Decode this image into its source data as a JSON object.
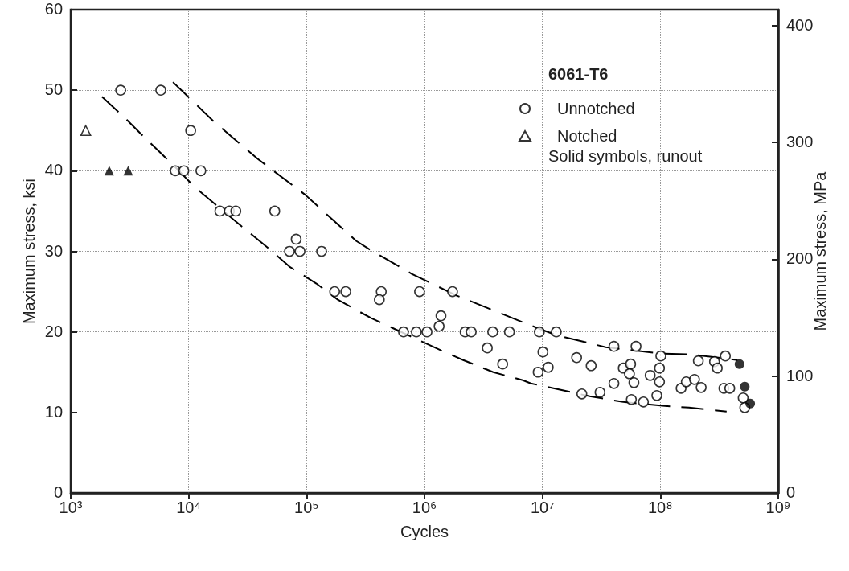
{
  "chart_data": {
    "type": "scatter",
    "xlabel": "Cycles",
    "ylabel": "Maximum stress, ksi",
    "y2label": "Maximum stress, MPa",
    "legend_title": "6061-T6",
    "annotations": [
      "Solid symbols, runout"
    ],
    "log": "x",
    "grid": true,
    "legend": "top right",
    "xlim": [
      1000,
      1000000000
    ],
    "xticks": [
      {
        "value": 1000,
        "label": "10³"
      },
      {
        "value": 10000,
        "label": "10⁴"
      },
      {
        "value": 100000,
        "label": "10⁵"
      },
      {
        "value": 1000000,
        "label": "10⁶"
      },
      {
        "value": 10000000,
        "label": "10⁷"
      },
      {
        "value": 100000000,
        "label": "10⁸"
      },
      {
        "value": 1000000000,
        "label": "10⁹"
      }
    ],
    "ylim": [
      0,
      60
    ],
    "yticks": [
      0,
      10,
      20,
      30,
      40,
      50,
      60
    ],
    "y2lim": [
      0,
      413.7
    ],
    "y2ticks": [
      0,
      100,
      200,
      300,
      400
    ],
    "series": [
      {
        "name": "Unnotched",
        "type": "scatter",
        "marker": "circle",
        "color": "#000000",
        "x": [
          2650,
          5800,
          10400,
          7700,
          9100,
          12700,
          18400,
          22100,
          25100,
          53700,
          81600,
          71600,
          87900,
          134000,
          173000,
          215000,
          430000,
          414000,
          908000,
          1730000,
          1380000,
          1330000,
          664000,
          853000,
          1050000,
          2210000,
          2490000,
          3790000,
          5250000,
          3410000,
          4600000,
          9420000,
          13100000,
          10100000,
          11200000,
          9200000,
          19500000,
          25900000,
          40400000,
          62200000,
          21600000,
          30800000,
          40400000,
          48500000,
          56000000,
          54700000,
          59700000,
          56800000,
          71900000,
          82000000,
          98400000,
          101000000,
          98400000,
          93400000,
          150000000,
          166000000,
          195000000,
          222000000,
          210000000,
          288000000,
          304000000,
          356000000,
          346000000,
          388000000,
          504000000,
          520000000
        ],
        "values": [
          50,
          50,
          45,
          40,
          40,
          40,
          35,
          35,
          35,
          35,
          31.5,
          30,
          30,
          30,
          25,
          25,
          25,
          24,
          25,
          25,
          22,
          20.7,
          20,
          20,
          20,
          20,
          20,
          20,
          20,
          18,
          16,
          20,
          20,
          17.5,
          15.6,
          15,
          16.8,
          15.8,
          18.2,
          18.2,
          12.3,
          12.5,
          13.6,
          15.5,
          16,
          14.8,
          13.7,
          11.6,
          11.3,
          14.6,
          15.5,
          17,
          13.8,
          12.1,
          13,
          13.8,
          14.1,
          13.1,
          16.4,
          16.3,
          15.5,
          17,
          13,
          13,
          11.8,
          10.6
        ]
      },
      {
        "name": "Notched",
        "type": "scatter",
        "marker": "triangle",
        "color": "#000000",
        "x": [
          1340
        ],
        "values": [
          45
        ]
      },
      {
        "type": "scatter",
        "marker": "circle",
        "color": "#000000",
        "x": [
          469000000,
          520000000,
          578000000
        ],
        "values": [
          16,
          13.2,
          11.1
        ]
      },
      {
        "type": "scatter",
        "marker": "triangle",
        "color": "#000000",
        "x": [
          2120,
          3070
        ],
        "values": [
          40,
          40
        ]
      },
      {
        "type": "line",
        "marker": "none",
        "line_style": "dashed",
        "color": "#000000",
        "x": [
          7360,
          16100,
          38300,
          97700,
          263000,
          355000,
          780000,
          1880000,
          3940000,
          7980000,
          13100000,
          26600000,
          34400000,
          103500000,
          185000000,
          452000000
        ],
        "values": [
          51,
          46.2,
          41.5,
          37,
          31.3,
          30.1,
          27.2,
          24.5,
          22.6,
          20.8,
          19.6,
          18.5,
          18.1,
          17.3,
          17.2,
          16.5
        ]
      },
      {
        "type": "line",
        "marker": "none",
        "line_style": "dashed",
        "color": "#000000",
        "x": [
          1840,
          2860,
          3920,
          7530,
          11200,
          17900,
          28700,
          51000,
          71600,
          121000,
          184000,
          265000,
          354000,
          1380000,
          2130000,
          3830000,
          6820000,
          7980000,
          12400000,
          25200000,
          48500000,
          109000000,
          175000000,
          365000000
        ],
        "values": [
          49.2,
          46.6,
          44.6,
          40.6,
          38,
          35.5,
          33,
          30,
          28.1,
          26,
          24,
          22.7,
          21.7,
          17.7,
          16.5,
          15,
          14,
          13.6,
          13,
          12,
          11.3,
          10.8,
          10.6,
          10.1
        ]
      }
    ]
  }
}
